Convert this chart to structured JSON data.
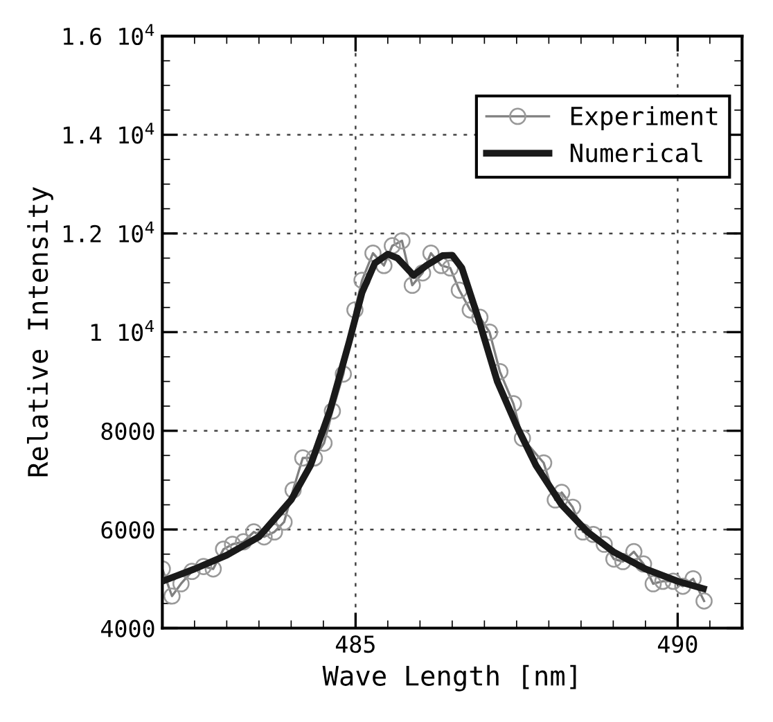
{
  "chart_data": {
    "type": "line",
    "xlabel": "Wave Length [nm]",
    "ylabel": "Relative Intensity",
    "xlim": [
      482,
      491
    ],
    "xticks": [
      485,
      490
    ],
    "ylim": [
      4000,
      16000
    ],
    "yticks": [
      4000,
      6000,
      8000,
      {
        "value": 10000,
        "label": "1 10$^{4}$"
      },
      {
        "value": 12000,
        "label": "1.2 10$^{4}$"
      },
      {
        "value": 14000,
        "label": "1.4 10$^{4}$"
      },
      {
        "value": 16000,
        "label": "1.6 10$^{4}$"
      }
    ],
    "grid": true,
    "legend": "top right",
    "series": [
      {
        "name": "Experiment",
        "color": "#808080",
        "marker": "circle",
        "line_style": "solid",
        "x": [
          482.0,
          482.15,
          482.29,
          482.46,
          482.64,
          482.79,
          482.95,
          483.09,
          483.26,
          483.42,
          483.58,
          483.74,
          483.89,
          484.03,
          484.18,
          484.36,
          484.51,
          484.64,
          484.81,
          484.99,
          485.1,
          485.27,
          485.44,
          485.57,
          485.72,
          485.88,
          486.04,
          486.17,
          486.33,
          486.47,
          486.61,
          486.78,
          486.93,
          487.08,
          487.24,
          487.45,
          487.59,
          487.92,
          488.1,
          488.2,
          488.37,
          488.53,
          488.69,
          488.86,
          489.01,
          489.15,
          489.32,
          489.47,
          489.62,
          489.77,
          489.93,
          490.08,
          490.24,
          490.41
        ],
        "values": [
          5200,
          4650,
          4900,
          5150,
          5250,
          5200,
          5600,
          5700,
          5750,
          5950,
          5850,
          5950,
          6150,
          6800,
          7450,
          7450,
          7750,
          8400,
          9150,
          10450,
          11050,
          11600,
          11350,
          11750,
          11850,
          10950,
          11200,
          11600,
          11350,
          11300,
          10850,
          10450,
          10300,
          10000,
          9200,
          8550,
          7850,
          7350,
          6600,
          6750,
          6450,
          5950,
          5900,
          5700,
          5400,
          5350,
          5550,
          5300,
          4900,
          4950,
          4950,
          4850,
          5000,
          4550
        ]
      },
      {
        "name": "Numerical",
        "color": "#1a1a1a",
        "marker": "none",
        "line_style": "solid",
        "x": [
          482.0,
          482.5,
          483.0,
          483.5,
          484.0,
          484.3,
          484.6,
          484.9,
          485.1,
          485.3,
          485.5,
          485.65,
          485.9,
          486.1,
          486.35,
          486.5,
          486.65,
          486.9,
          487.2,
          487.5,
          487.8,
          488.2,
          488.6,
          489.0,
          489.5,
          490.0,
          490.4
        ],
        "values": [
          4950,
          5200,
          5480,
          5850,
          6600,
          7300,
          8400,
          9800,
          10800,
          11400,
          11580,
          11500,
          11150,
          11350,
          11550,
          11560,
          11300,
          10300,
          9000,
          8100,
          7300,
          6500,
          5950,
          5550,
          5200,
          4950,
          4800
        ]
      }
    ]
  }
}
